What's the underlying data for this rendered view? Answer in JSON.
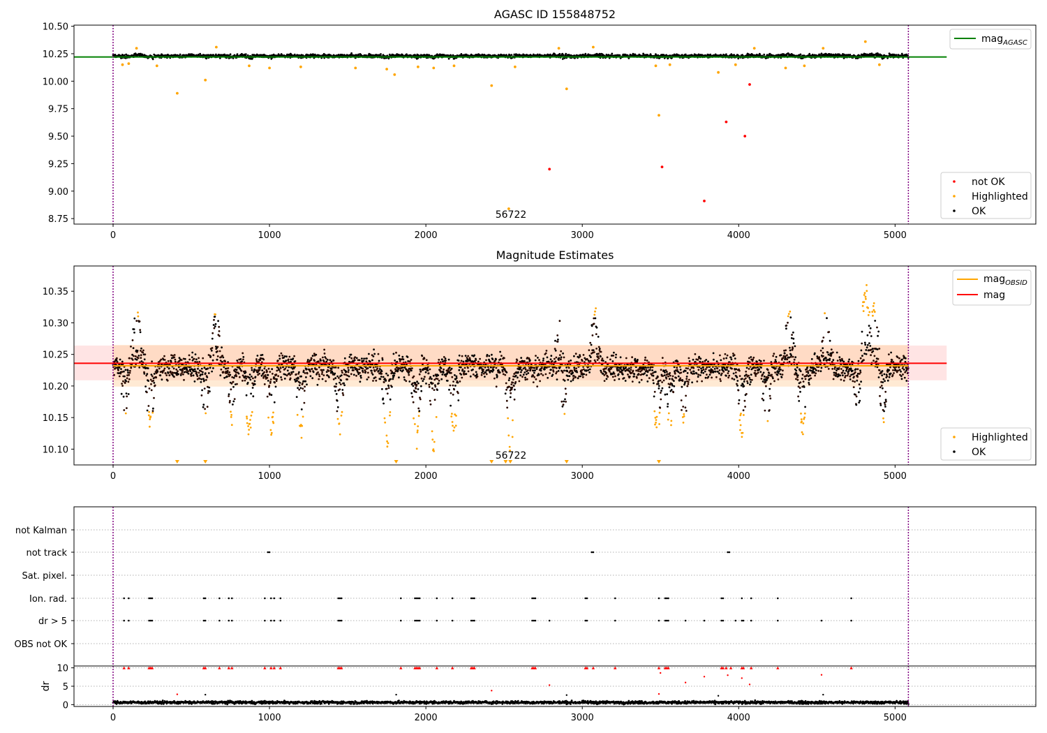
{
  "chart_data": [
    {
      "type": "scatter",
      "title": "AGASC ID 155848752",
      "xlim": [
        -250,
        5900
      ],
      "ylim": [
        8.7,
        10.51
      ],
      "xticks": [
        0,
        1000,
        2000,
        3000,
        4000,
        5000
      ],
      "yticks": [
        8.75,
        9.0,
        9.25,
        9.5,
        9.75,
        10.0,
        10.25,
        10.5
      ],
      "ytick_labels": [
        "8.75",
        "9.00",
        "9.25",
        "9.50",
        "9.75",
        "10.00",
        "10.25",
        "10.50"
      ],
      "grid": false,
      "annotation": "56722",
      "vlines": [
        0,
        5085
      ],
      "reference_line": {
        "name": "mag_AGASC",
        "value": 10.22,
        "x_range": [
          -250,
          5330
        ],
        "color": "#008000"
      },
      "legend_line": {
        "label": "mag",
        "subscript": "AGASC",
        "placement": "top-right"
      },
      "legend_points": {
        "placement": "lower-right",
        "entries": [
          {
            "label": "not OK",
            "color": "#ff0000"
          },
          {
            "label": "Highlighted",
            "color": "#ffa500"
          },
          {
            "label": "OK",
            "color": "#000000"
          }
        ]
      },
      "ok_band": {
        "center": 10.23,
        "spread": 0.022,
        "x_range": [
          0,
          5085
        ]
      },
      "series": [
        {
          "name": "not OK",
          "color": "#ff0000",
          "points": [
            [
              2790,
              9.2
            ],
            [
              3510,
              9.22
            ],
            [
              3780,
              8.91
            ],
            [
              3920,
              9.63
            ],
            [
              4040,
              9.5
            ],
            [
              4070,
              9.97
            ]
          ]
        },
        {
          "name": "Highlighted",
          "color": "#ffa500",
          "points": [
            [
              410,
              9.89
            ],
            [
              590,
              10.01
            ],
            [
              2420,
              9.96
            ],
            [
              2530,
              8.84
            ],
            [
              2900,
              9.93
            ],
            [
              3490,
              9.69
            ],
            [
              3870,
              10.08
            ],
            [
              1800,
              10.06
            ],
            [
              1550,
              10.12
            ],
            [
              4300,
              10.12
            ],
            [
              4810,
              10.36
            ],
            [
              4100,
              10.3
            ],
            [
              3070,
              10.31
            ],
            [
              2850,
              10.3
            ],
            [
              660,
              10.31
            ],
            [
              150,
              10.3
            ],
            [
              4540,
              10.3
            ],
            [
              60,
              10.15
            ],
            [
              100,
              10.16
            ],
            [
              280,
              10.14
            ],
            [
              870,
              10.14
            ],
            [
              1000,
              10.12
            ],
            [
              1200,
              10.13
            ],
            [
              1750,
              10.11
            ],
            [
              1950,
              10.13
            ],
            [
              2050,
              10.12
            ],
            [
              2180,
              10.14
            ],
            [
              2570,
              10.13
            ],
            [
              3470,
              10.14
            ],
            [
              3560,
              10.15
            ],
            [
              3980,
              10.15
            ],
            [
              4420,
              10.14
            ],
            [
              4900,
              10.15
            ]
          ]
        }
      ]
    },
    {
      "type": "scatter",
      "title": "Magnitude Estimates",
      "xlim": [
        -250,
        5900
      ],
      "ylim": [
        10.075,
        10.39
      ],
      "xticks": [
        0,
        1000,
        2000,
        3000,
        4000,
        5000
      ],
      "yticks": [
        10.1,
        10.15,
        10.2,
        10.25,
        10.3,
        10.35
      ],
      "ytick_labels": [
        "10.10",
        "10.15",
        "10.20",
        "10.25",
        "10.30",
        "10.35"
      ],
      "grid": false,
      "annotation": "56722",
      "vlines": [
        0,
        5085
      ],
      "mag_obsid": {
        "label": "mag",
        "subscript": "OBSID",
        "value": 10.232,
        "band": [
          10.199,
          10.265
        ],
        "x_range": [
          0,
          5085
        ],
        "color": "#ffa500"
      },
      "mag": {
        "label": "mag",
        "value": 10.236,
        "band": [
          10.209,
          10.264
        ],
        "x_range": [
          -250,
          5330
        ],
        "color": "#ff0000"
      },
      "legend_lines": {
        "placement": "top-right"
      },
      "legend_points": {
        "placement": "lower-right",
        "entries": [
          {
            "label": "Highlighted",
            "color": "#ffa500"
          },
          {
            "label": "OK",
            "color": "#000000"
          }
        ]
      },
      "off_scale_markers": [
        410,
        590,
        1810,
        2420,
        2510,
        2540,
        2900,
        3490
      ],
      "dips": [
        {
          "x": 80,
          "depth": 0.07
        },
        {
          "x": 240,
          "depth": 0.09
        },
        {
          "x": 590,
          "depth": 0.08
        },
        {
          "x": 760,
          "depth": 0.08
        },
        {
          "x": 870,
          "depth": 0.1
        },
        {
          "x": 1010,
          "depth": 0.11
        },
        {
          "x": 1200,
          "depth": 0.1
        },
        {
          "x": 1450,
          "depth": 0.09
        },
        {
          "x": 1750,
          "depth": 0.12
        },
        {
          "x": 1940,
          "depth": 0.11
        },
        {
          "x": 2050,
          "depth": 0.13
        },
        {
          "x": 2180,
          "depth": 0.1
        },
        {
          "x": 2540,
          "depth": 0.12
        },
        {
          "x": 2880,
          "depth": 0.08
        },
        {
          "x": 3480,
          "depth": 0.09
        },
        {
          "x": 3560,
          "depth": 0.09
        },
        {
          "x": 3650,
          "depth": 0.08
        },
        {
          "x": 4020,
          "depth": 0.1
        },
        {
          "x": 4180,
          "depth": 0.09
        },
        {
          "x": 4410,
          "depth": 0.1
        },
        {
          "x": 4760,
          "depth": 0.07
        },
        {
          "x": 4920,
          "depth": 0.09
        }
      ],
      "peaks": [
        {
          "x": 150,
          "height": 0.09
        },
        {
          "x": 660,
          "height": 0.08
        },
        {
          "x": 2860,
          "height": 0.07
        },
        {
          "x": 3080,
          "height": 0.08
        },
        {
          "x": 4320,
          "height": 0.08
        },
        {
          "x": 4810,
          "height": 0.12
        },
        {
          "x": 4870,
          "height": 0.09
        },
        {
          "x": 4560,
          "height": 0.07
        }
      ]
    },
    {
      "type": "scatter",
      "title": "",
      "xlim": [
        -250,
        5900
      ],
      "categories": [
        "not Kalman",
        "not track",
        "Sat. pixel.",
        "Ion. rad.",
        "dr > 5",
        "OBS not OK"
      ],
      "grid": "horizontal dotted",
      "vlines": [
        0,
        5085
      ],
      "flags": {
        "not track": [
          990,
          1000,
          3060,
          3070,
          3930,
          3940
        ],
        "Ion. rad.": [
          70,
          100,
          230,
          240,
          250,
          580,
          590,
          680,
          740,
          760,
          970,
          1010,
          1030,
          1070,
          1440,
          1450,
          1460,
          1840,
          1930,
          1940,
          1950,
          1960,
          2070,
          2170,
          2290,
          2300,
          2310,
          2680,
          2690,
          2700,
          3020,
          3030,
          3210,
          3490,
          3530,
          3540,
          3550,
          3890,
          3900,
          4020,
          4080,
          4250,
          4720
        ],
        "dr > 5": [
          70,
          100,
          230,
          240,
          250,
          580,
          590,
          680,
          740,
          760,
          970,
          1010,
          1030,
          1070,
          1440,
          1450,
          1460,
          1840,
          1930,
          1940,
          1950,
          1960,
          2070,
          2170,
          2290,
          2300,
          2310,
          2680,
          2690,
          2700,
          2790,
          3020,
          3030,
          3210,
          3490,
          3530,
          3540,
          3550,
          3660,
          3780,
          3890,
          3900,
          3980,
          4020,
          4030,
          4080,
          4250,
          4530,
          4720
        ]
      }
    },
    {
      "type": "scatter",
      "title": "",
      "ylabel": "dr",
      "xlim": [
        -250,
        5900
      ],
      "ylim": [
        -0.5,
        10.5
      ],
      "xticks": [
        0,
        1000,
        2000,
        3000,
        4000,
        5000
      ],
      "yticks": [
        0,
        5,
        10
      ],
      "ytick_labels": [
        "0",
        "5",
        "10"
      ],
      "grid": "horizontal dotted",
      "vlines": [
        0,
        5085
      ],
      "baseline": {
        "typical_dr": 0.6,
        "max_dr": 1.6
      },
      "series": [
        {
          "name": "dr ≥ 10 (capped)",
          "color": "#ff0000",
          "marker": "triangle-up",
          "x": [
            70,
            100,
            230,
            240,
            250,
            580,
            590,
            680,
            740,
            760,
            970,
            1010,
            1030,
            1070,
            1440,
            1450,
            1460,
            1840,
            1930,
            1940,
            1950,
            1960,
            2070,
            2170,
            2290,
            2300,
            2310,
            2680,
            2690,
            2700,
            3020,
            3030,
            3070,
            3210,
            3490,
            3530,
            3540,
            3550,
            3890,
            3900,
            3920,
            3950,
            4020,
            4030,
            4080,
            4250,
            4720
          ]
        },
        {
          "name": "large dr",
          "color": "#ff0000",
          "points": [
            [
              410,
              2.8
            ],
            [
              2420,
              3.8
            ],
            [
              2790,
              5.3
            ],
            [
              3500,
              8.6
            ],
            [
              3660,
              6.0
            ],
            [
              3780,
              7.6
            ],
            [
              3930,
              8.0
            ],
            [
              4020,
              7.2
            ],
            [
              4070,
              5.5
            ],
            [
              4530,
              8.1
            ],
            [
              3490,
              2.9
            ]
          ]
        },
        {
          "name": "moderate dr",
          "color": "#000000",
          "points": [
            [
              590,
              2.7
            ],
            [
              1810,
              2.7
            ],
            [
              2900,
              2.6
            ],
            [
              3870,
              2.4
            ],
            [
              4540,
              2.7
            ]
          ]
        }
      ]
    }
  ]
}
